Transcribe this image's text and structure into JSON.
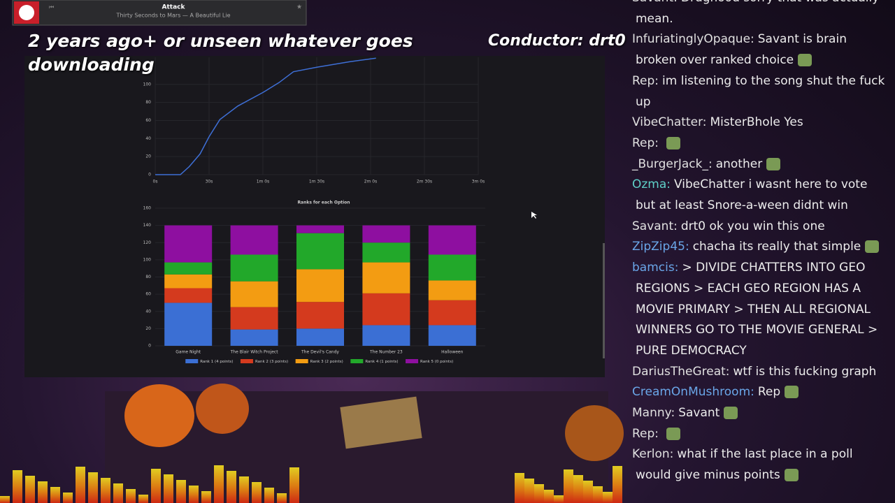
{
  "player": {
    "song": "Attack",
    "artist": "Thirty Seconds to Mars — A Beautiful Lie"
  },
  "overlay": {
    "caption": "2 years ago+ or unseen whatever goes downloading",
    "conductor": "Conductor: drt0"
  },
  "chat": {
    "messages": [
      {
        "user": "Savant:",
        "color": "#e0e0e0",
        "text": "Drughood sorry that was actually mean."
      },
      {
        "user": "InfuriatinglyOpaque:",
        "color": "#e0e0e0",
        "text": "Savant is brain broken over ranked choice"
      },
      {
        "user": "Rep:",
        "color": "#e0e0e0",
        "text": "im listening to the song shut the fuck up"
      },
      {
        "user": "VibeChatter:",
        "color": "#e0e0e0",
        "text": "MisterBhole Yes"
      },
      {
        "user": "Rep:",
        "color": "#e0e0e0",
        "text": ""
      },
      {
        "user": "_BurgerJack_:",
        "color": "#e0e0e0",
        "text": "another"
      },
      {
        "user": "Ozma:",
        "color": "#5fd0c8",
        "text": "VibeChatter i wasnt here to vote but at least Snore-a-ween didnt win"
      },
      {
        "user": "Savant:",
        "color": "#e0e0e0",
        "text": "drt0 ok you win this one"
      },
      {
        "user": "ZipZip45:",
        "color": "#6aa6e8",
        "text": "chacha its really that simple"
      },
      {
        "user": "bamcis:",
        "color": "#6aa6e8",
        "text": "> DIVIDE CHATTERS INTO GEO REGIONS > EACH GEO REGION HAS A MOVIE PRIMARY > THEN ALL REGIONAL WINNERS GO TO THE MOVIE GENERAL > PURE DEMOCRACY"
      },
      {
        "user": "DariusTheGreat:",
        "color": "#e0e0e0",
        "text": "wtf is this fucking graph"
      },
      {
        "user": "CreamOnMushroom:",
        "color": "#6aa6e8",
        "text": "Rep"
      },
      {
        "user": "Manny:",
        "color": "#e0e0e0",
        "text": "Savant"
      },
      {
        "user": "Rep:",
        "color": "#e0e0e0",
        "text": ""
      },
      {
        "user": "Kerlon:",
        "color": "#e0e0e0",
        "text": "what if the last place in a poll would give minus points"
      }
    ]
  },
  "chart_data": [
    {
      "type": "line",
      "color": "#3e6fd6",
      "x": [
        0,
        14,
        19,
        25,
        30,
        36,
        46,
        60,
        69,
        77,
        90,
        108,
        123
      ],
      "values": [
        0,
        0,
        9,
        23,
        42,
        61,
        76,
        91,
        102,
        114,
        119,
        125,
        129
      ],
      "xlim": [
        0,
        180
      ],
      "ylim": [
        0,
        130
      ],
      "xticks": [
        {
          "value": 0,
          "label": "0s"
        },
        {
          "value": 30,
          "label": "30s"
        },
        {
          "value": 60,
          "label": "1m 0s"
        },
        {
          "value": 90,
          "label": "1m 30s"
        },
        {
          "value": 120,
          "label": "2m 0s"
        },
        {
          "value": 150,
          "label": "2m 30s"
        },
        {
          "value": 180,
          "label": "3m 0s"
        }
      ],
      "yticks": [
        0,
        20,
        40,
        60,
        80,
        100
      ],
      "grid": true
    },
    {
      "type": "stacked-bar",
      "title": "Ranks for each Option",
      "categories": [
        "Game Night",
        "The Blair Witch Project",
        "The Devil's Candy",
        "The Number 23",
        "Halloween"
      ],
      "series": [
        {
          "name": "Rank 1 (4 points)",
          "color": "#3b6fd4",
          "values": [
            50,
            19,
            20,
            24,
            24
          ]
        },
        {
          "name": "Rank 2 (3 points)",
          "color": "#d43a1e",
          "values": [
            17,
            26,
            31,
            37,
            29
          ]
        },
        {
          "name": "Rank 3 (2 points)",
          "color": "#f39c12",
          "values": [
            16,
            30,
            38,
            36,
            23
          ]
        },
        {
          "name": "Rank 4 (1 points)",
          "color": "#22a82a",
          "values": [
            14,
            31,
            42,
            23,
            30
          ]
        },
        {
          "name": "Rank 5 (0 points)",
          "color": "#8e0fa0",
          "values": [
            43,
            34,
            9,
            20,
            34
          ]
        }
      ],
      "ylim": [
        0,
        160
      ],
      "yticks": [
        0,
        20,
        40,
        60,
        80,
        100,
        120,
        140,
        160
      ],
      "grid": true,
      "legend": "bottom"
    }
  ]
}
